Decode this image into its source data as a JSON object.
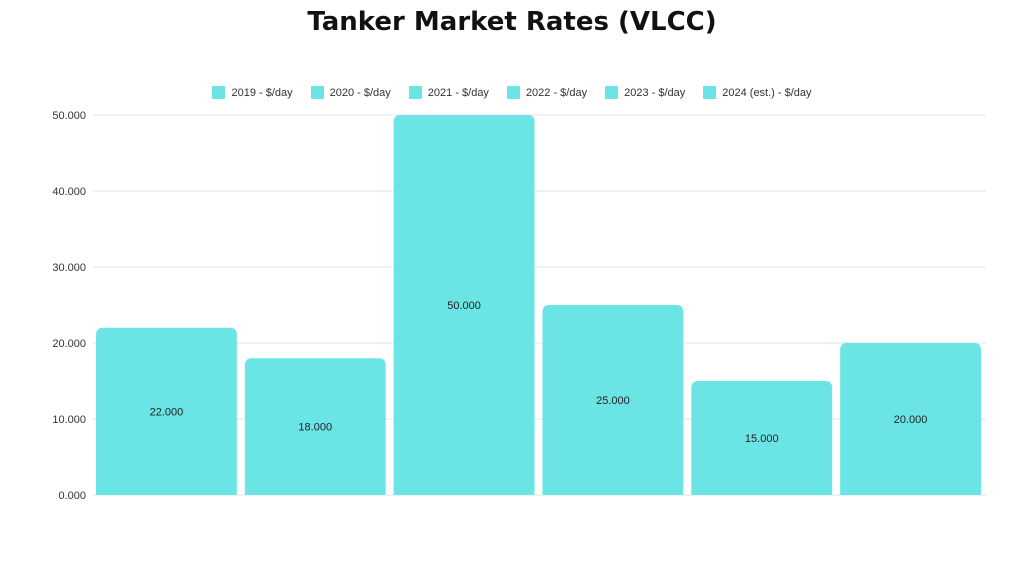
{
  "chart_data": {
    "type": "bar",
    "title": "Tanker Market Rates (VLCC)",
    "xlabel": "",
    "ylabel": "",
    "ylim": [
      0,
      50000
    ],
    "yticks": [
      0,
      10000,
      20000,
      30000,
      40000,
      50000
    ],
    "ytick_labels": [
      "0.000",
      "10.000",
      "20.000",
      "30.000",
      "40.000",
      "50.000"
    ],
    "grid": true,
    "legend_position": "top-center",
    "bar_color": "#6ae4e4",
    "series": [
      {
        "name": "2019 - $/day",
        "value": 22000,
        "label": "22.000"
      },
      {
        "name": "2020 - $/day",
        "value": 18000,
        "label": "18.000"
      },
      {
        "name": "2021 - $/day",
        "value": 50000,
        "label": "50.000"
      },
      {
        "name": "2022 - $/day",
        "value": 25000,
        "label": "25.000"
      },
      {
        "name": "2023 - $/day",
        "value": 15000,
        "label": "15.000"
      },
      {
        "name": "2024 (est.) - $/day",
        "value": 20000,
        "label": "20.000"
      }
    ]
  }
}
